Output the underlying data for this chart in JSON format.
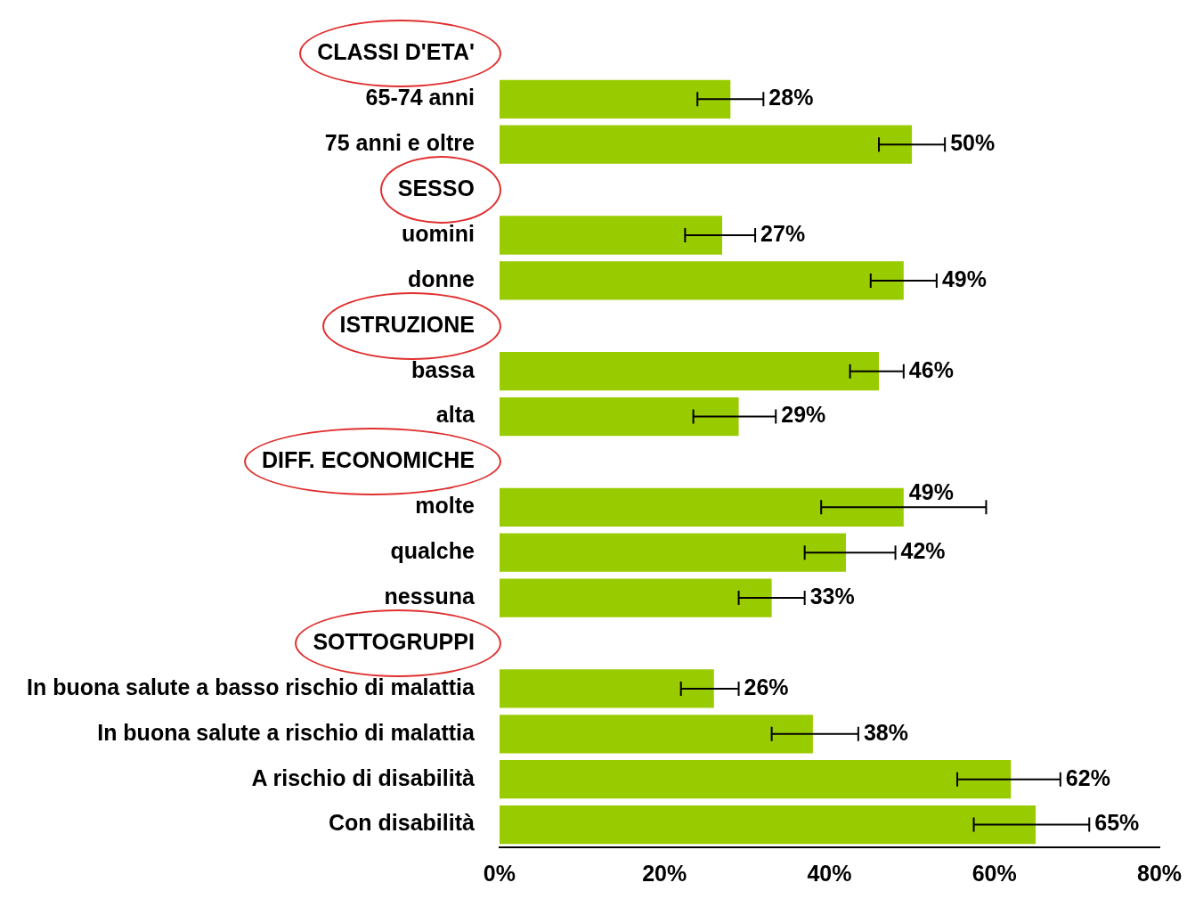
{
  "chart_data": {
    "type": "bar",
    "orientation": "horizontal",
    "categories": [
      "CLASSI D'ETA'",
      "65-74 anni",
      "75 anni e oltre",
      "SESSO",
      "uomini",
      "donne",
      "ISTRUZIONE",
      "bassa",
      "alta",
      "DIFF. ECONOMICHE",
      "molte",
      "qualche",
      "nessuna",
      "SOTTOGRUPPI",
      "In buona salute a basso rischio di malattia",
      "In buona salute a rischio di malattia",
      "A rischio di disabilità",
      "Con disabilità"
    ],
    "values": [
      null,
      28,
      50,
      null,
      27,
      49,
      null,
      46,
      29,
      null,
      49,
      42,
      33,
      null,
      26,
      38,
      62,
      65
    ],
    "errors": [
      null,
      [
        24,
        32
      ],
      [
        46,
        54
      ],
      null,
      [
        22.5,
        31
      ],
      [
        45,
        53
      ],
      null,
      [
        42.5,
        49
      ],
      [
        23.5,
        33.5
      ],
      null,
      [
        39,
        59
      ],
      [
        37,
        48
      ],
      [
        29,
        37
      ],
      null,
      [
        22,
        29
      ],
      [
        33,
        43.5
      ],
      [
        55.5,
        68
      ],
      [
        57.5,
        71.5
      ]
    ],
    "value_labels": [
      null,
      "28%",
      "50%",
      null,
      "27%",
      "49%",
      null,
      "46%",
      "29%",
      null,
      "49%",
      "42%",
      "33%",
      null,
      "26%",
      "38%",
      "62%",
      "65%"
    ],
    "color": "#99cc00",
    "xlim": [
      0,
      80
    ],
    "xticks": [
      {
        "value": 0,
        "label": "0%"
      },
      {
        "value": 20,
        "label": "20%"
      },
      {
        "value": 40,
        "label": "40%"
      },
      {
        "value": 60,
        "label": "60%"
      },
      {
        "value": 80,
        "label": "80%"
      }
    ],
    "grid": false,
    "legend": false
  }
}
